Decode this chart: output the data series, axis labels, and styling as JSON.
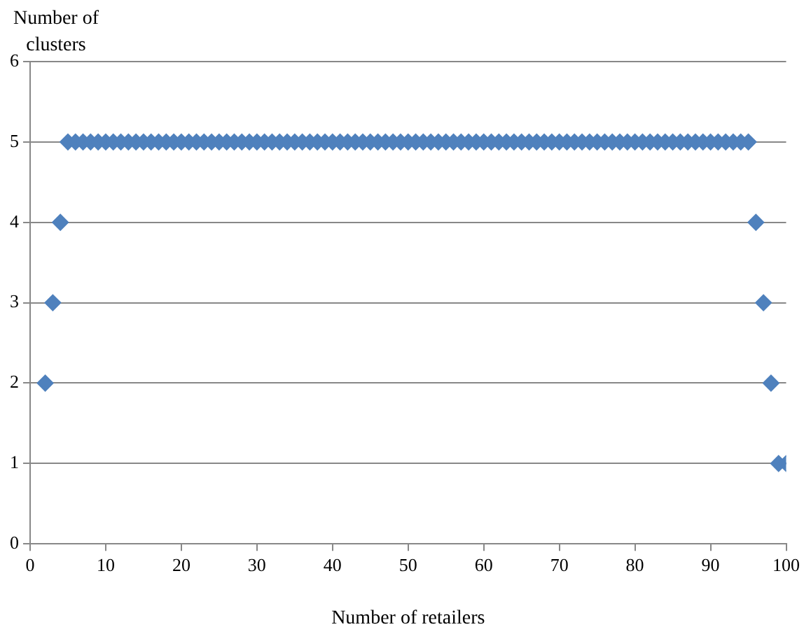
{
  "chart_data": {
    "type": "scatter",
    "xlabel": "Number of retailers",
    "ylabel": "Number of clusters",
    "x": [
      2,
      3,
      4,
      5,
      6,
      7,
      8,
      9,
      10,
      11,
      12,
      13,
      14,
      15,
      16,
      17,
      18,
      19,
      20,
      21,
      22,
      23,
      24,
      25,
      26,
      27,
      28,
      29,
      30,
      31,
      32,
      33,
      34,
      35,
      36,
      37,
      38,
      39,
      40,
      41,
      42,
      43,
      44,
      45,
      46,
      47,
      48,
      49,
      50,
      51,
      52,
      53,
      54,
      55,
      56,
      57,
      58,
      59,
      60,
      61,
      62,
      63,
      64,
      65,
      66,
      67,
      68,
      69,
      70,
      71,
      72,
      73,
      74,
      75,
      76,
      77,
      78,
      79,
      80,
      81,
      82,
      83,
      84,
      85,
      86,
      87,
      88,
      89,
      90,
      91,
      92,
      93,
      94,
      95,
      96,
      97,
      98,
      99,
      100
    ],
    "values": [
      2,
      3,
      4,
      5,
      5,
      5,
      5,
      5,
      5,
      5,
      5,
      5,
      5,
      5,
      5,
      5,
      5,
      5,
      5,
      5,
      5,
      5,
      5,
      5,
      5,
      5,
      5,
      5,
      5,
      5,
      5,
      5,
      5,
      5,
      5,
      5,
      5,
      5,
      5,
      5,
      5,
      5,
      5,
      5,
      5,
      5,
      5,
      5,
      5,
      5,
      5,
      5,
      5,
      5,
      5,
      5,
      5,
      5,
      5,
      5,
      5,
      5,
      5,
      5,
      5,
      5,
      5,
      5,
      5,
      5,
      5,
      5,
      5,
      5,
      5,
      5,
      5,
      5,
      5,
      5,
      5,
      5,
      5,
      5,
      5,
      5,
      5,
      5,
      5,
      5,
      5,
      5,
      5,
      5,
      4,
      3,
      2,
      1,
      1
    ],
    "color": "#4f81bd",
    "marker": "diamond",
    "grid": "y",
    "legend": false,
    "xlim": [
      0,
      100
    ],
    "xticks": [
      0,
      10,
      20,
      30,
      40,
      50,
      60,
      70,
      80,
      90,
      100
    ],
    "ylim": [
      0,
      6
    ],
    "yticks": [
      0,
      1,
      2,
      3,
      4,
      5,
      6
    ]
  }
}
